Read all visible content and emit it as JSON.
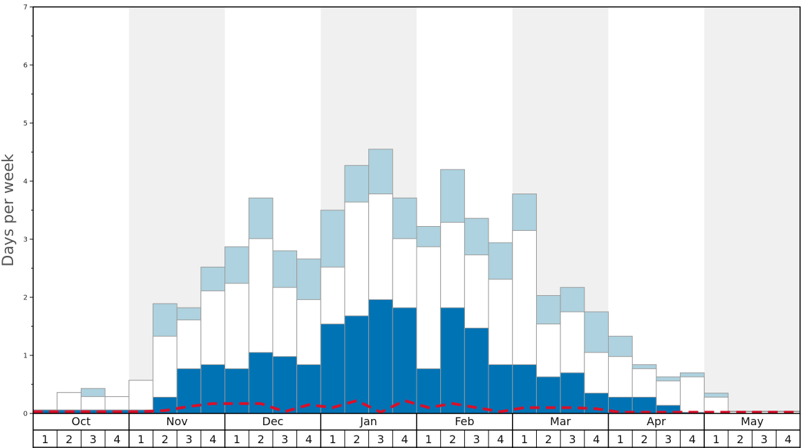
{
  "chart_data": {
    "type": "bar",
    "title": "",
    "xlabel": "",
    "ylabel": "Days per week",
    "ylim": [
      0,
      7
    ],
    "yticks": [
      0,
      1,
      2,
      3,
      4,
      5,
      6,
      7
    ],
    "months": [
      "Oct",
      "Nov",
      "Dec",
      "Jan",
      "Feb",
      "Mar",
      "Apr",
      "May"
    ],
    "weeks": [
      "1",
      "2",
      "3",
      "4"
    ],
    "shaded_months": [
      "Nov",
      "Jan",
      "Mar",
      "May"
    ],
    "grid": false,
    "colors": {
      "dark_blue": "#0073b5",
      "white": "#ffffff",
      "light_blue": "#aed2df",
      "bar_stroke": "#9a9a9a",
      "dashed_line": "#d8102a",
      "shade": "#f0f0f0"
    },
    "series": [
      {
        "values": [
          0.06,
          0.06,
          0.06,
          0.06,
          0.06,
          0.28,
          0.77,
          0.84,
          0.77,
          1.05,
          0.98,
          0.84,
          1.54,
          1.68,
          1.96,
          1.82,
          0.77,
          1.82,
          1.47,
          0.84,
          0.84,
          0.63,
          0.7,
          0.35,
          0.28,
          0.28,
          0.14,
          0.02,
          0.0,
          0.0,
          0.0,
          0.0
        ]
      },
      {
        "values": [
          0.06,
          0.36,
          0.29,
          0.29,
          0.57,
          1.33,
          1.61,
          2.11,
          2.24,
          3.01,
          2.17,
          1.96,
          2.52,
          3.64,
          3.78,
          3.01,
          2.87,
          3.29,
          2.73,
          2.31,
          3.15,
          1.54,
          1.75,
          1.05,
          0.98,
          0.77,
          0.56,
          0.63,
          0.28,
          0.03,
          0.03,
          0.03
        ]
      },
      {
        "values": [
          0.06,
          0.36,
          0.43,
          0.29,
          0.57,
          1.89,
          1.82,
          2.52,
          2.87,
          3.71,
          2.8,
          2.66,
          3.5,
          4.27,
          4.55,
          3.71,
          3.22,
          4.2,
          3.36,
          2.94,
          3.78,
          2.03,
          2.17,
          1.75,
          1.33,
          0.84,
          0.63,
          0.7,
          0.35,
          0.04,
          0.04,
          0.04
        ]
      },
      {
        "line_style": "dashed",
        "values": [
          0.03,
          0.03,
          0.03,
          0.03,
          0.03,
          0.05,
          0.12,
          0.17,
          0.17,
          0.17,
          0.03,
          0.15,
          0.1,
          0.22,
          0.02,
          0.22,
          0.1,
          0.17,
          0.1,
          0.03,
          0.1,
          0.1,
          0.1,
          0.08,
          0.02,
          0.02,
          0.02,
          0.02,
          0.02,
          0.02,
          0.02,
          0.02
        ]
      }
    ]
  }
}
